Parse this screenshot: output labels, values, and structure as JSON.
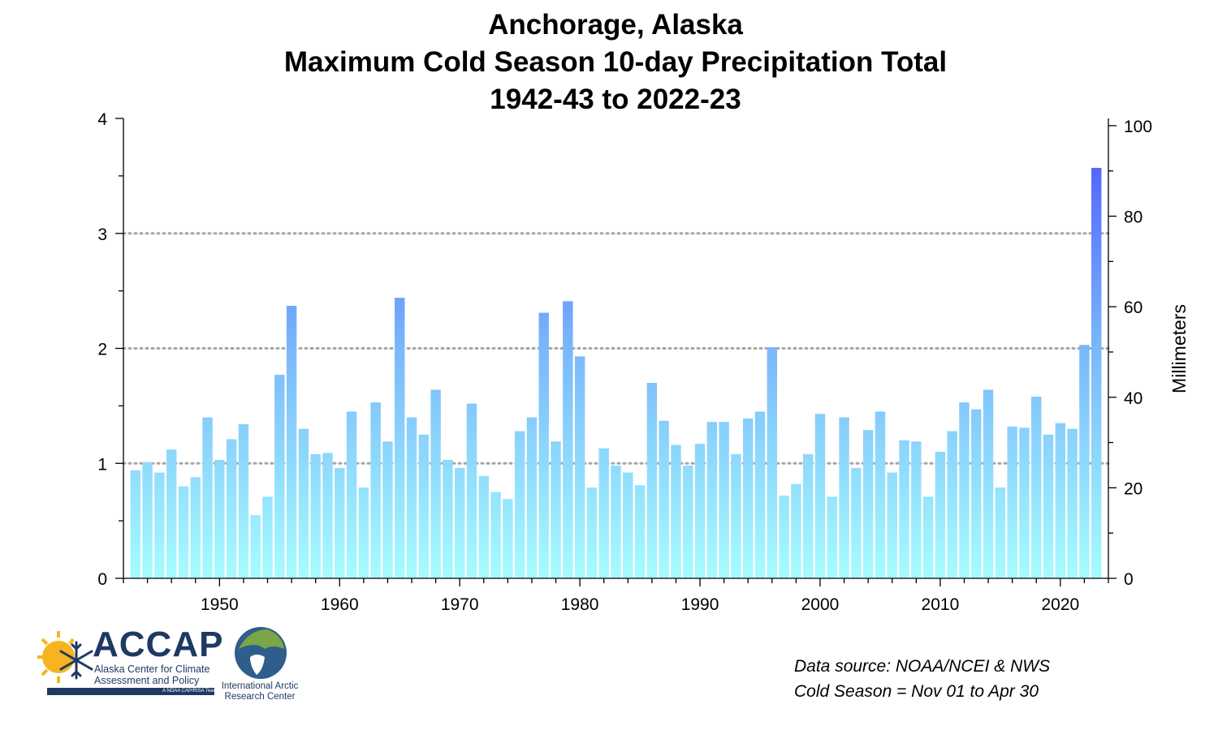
{
  "title_lines": [
    "Anchorage, Alaska",
    "Maximum Cold Season 10-day Precipitation Total",
    "1942-43 to 2022-23"
  ],
  "notes": {
    "source": "Data source: NOAA/NCEI & NWS",
    "season": "Cold Season = Nov 01 to Apr 30"
  },
  "logos": {
    "accap_name": "ACCAP",
    "accap_full": "Alaska Center for Climate Assessment and Policy",
    "accap_team": "A NOAA CAP/RISA Team",
    "iarc_name": "International Arctic Research Center"
  },
  "colors": {
    "bar_low": "#a6fcfe",
    "bar_mid": "#79b8fb",
    "bar_high": "#4a52fc",
    "gridline": "#a6a6a6",
    "logo_navy": "#1e3a63"
  },
  "chart_data": {
    "type": "bar",
    "title": "Anchorage, Alaska Maximum Cold Season 10-day Precipitation Total 1942-43 to 2022-23",
    "xlabel": "",
    "ylabel": "",
    "y2label": "Millimeters",
    "xlim": [
      1942,
      2024
    ],
    "ylim": [
      0,
      4
    ],
    "y2lim": [
      0,
      101.6
    ],
    "x_ticks": [
      1950,
      1960,
      1970,
      1980,
      1990,
      2000,
      2010,
      2020
    ],
    "y_ticks": [
      0,
      1,
      2,
      3,
      4
    ],
    "y2_ticks": [
      0,
      20,
      40,
      60,
      80,
      100
    ],
    "gridlines_y": [
      1,
      2,
      3
    ],
    "grid": "dotted horizontal at 1, 2, 3",
    "legend": "none",
    "x": [
      1943,
      1944,
      1945,
      1946,
      1947,
      1948,
      1949,
      1950,
      1951,
      1952,
      1953,
      1954,
      1955,
      1956,
      1957,
      1958,
      1959,
      1960,
      1961,
      1962,
      1963,
      1964,
      1965,
      1966,
      1967,
      1968,
      1969,
      1970,
      1971,
      1972,
      1973,
      1974,
      1975,
      1976,
      1977,
      1978,
      1979,
      1980,
      1981,
      1982,
      1983,
      1984,
      1985,
      1986,
      1987,
      1988,
      1989,
      1990,
      1991,
      1992,
      1993,
      1994,
      1995,
      1996,
      1997,
      1998,
      1999,
      2000,
      2001,
      2002,
      2003,
      2004,
      2005,
      2006,
      2007,
      2008,
      2009,
      2010,
      2011,
      2012,
      2013,
      2014,
      2015,
      2016,
      2017,
      2018,
      2019,
      2020,
      2021,
      2022,
      2023
    ],
    "values": [
      0.94,
      1.01,
      0.92,
      1.12,
      0.8,
      0.88,
      1.4,
      1.03,
      1.21,
      1.34,
      0.55,
      0.71,
      1.77,
      2.37,
      1.3,
      1.08,
      1.09,
      0.96,
      1.45,
      0.79,
      1.53,
      1.19,
      2.44,
      1.4,
      1.25,
      1.64,
      1.03,
      0.96,
      1.52,
      0.89,
      0.75,
      0.69,
      1.28,
      1.4,
      2.31,
      1.19,
      2.41,
      1.93,
      0.79,
      1.13,
      0.98,
      0.92,
      0.81,
      1.7,
      1.37,
      1.16,
      0.98,
      1.17,
      1.36,
      1.36,
      1.08,
      1.39,
      1.45,
      2.01,
      0.72,
      0.82,
      1.08,
      1.43,
      0.71,
      1.4,
      0.96,
      1.29,
      1.45,
      0.92,
      1.2,
      1.19,
      0.71,
      1.1,
      1.28,
      1.53,
      1.47,
      1.64,
      0.79,
      1.32,
      1.31,
      1.58,
      1.25,
      1.35,
      1.3,
      2.03,
      3.57
    ]
  }
}
